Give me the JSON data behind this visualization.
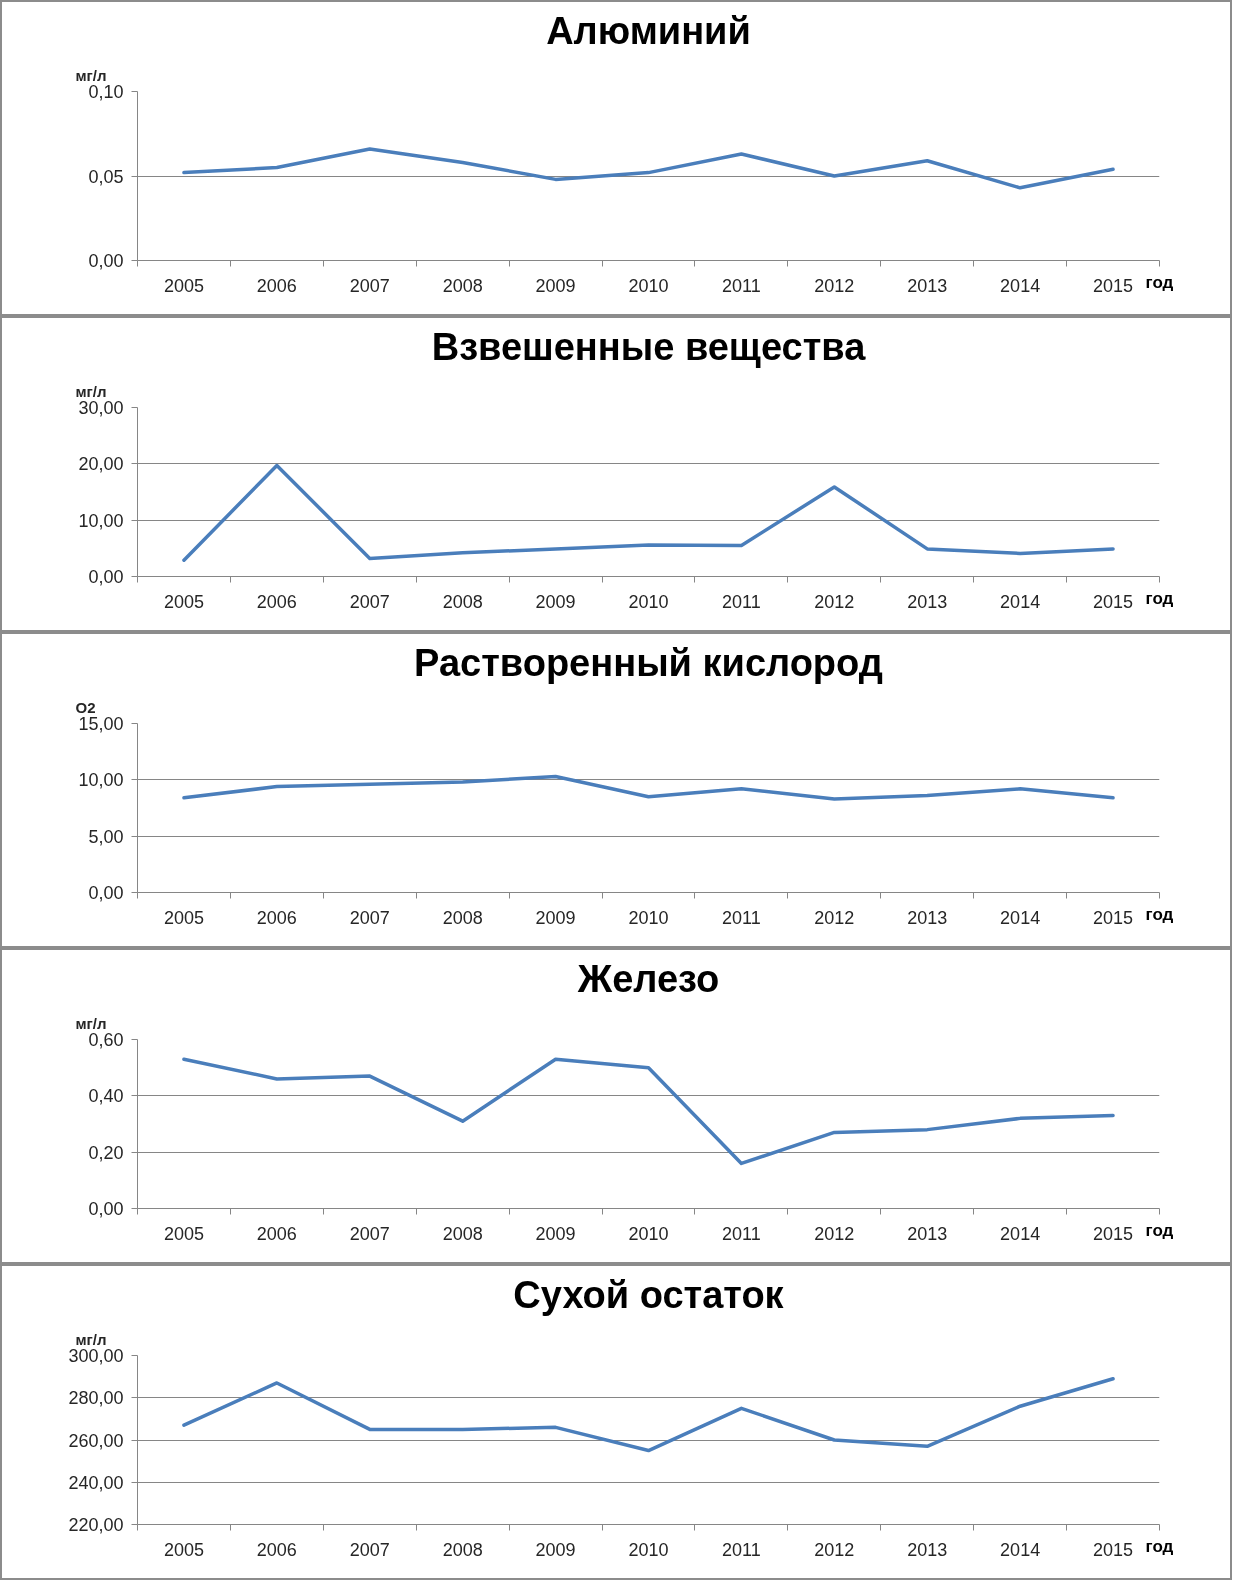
{
  "chart_data": [
    {
      "type": "line",
      "title": "Алюминий",
      "xlabel": "год",
      "ylabel": "мг/л",
      "categories": [
        "2005",
        "2006",
        "2007",
        "2008",
        "2009",
        "2010",
        "2011",
        "2012",
        "2013",
        "2014",
        "2015"
      ],
      "values": [
        0.052,
        0.055,
        0.066,
        0.058,
        0.048,
        0.052,
        0.063,
        0.05,
        0.059,
        0.043,
        0.054
      ],
      "color": "#4a7ebb",
      "ylim": [
        0,
        0.1
      ],
      "yticks": [
        {
          "value": 0,
          "label": "0,00"
        },
        {
          "value": 0.05,
          "label": "0,05"
        },
        {
          "value": 0.1,
          "label": "0,10"
        }
      ],
      "grid": "y",
      "line_style": "solid"
    },
    {
      "type": "line",
      "title": "Взвешенные вещества",
      "xlabel": "год",
      "ylabel": "мг/л",
      "categories": [
        "2005",
        "2006",
        "2007",
        "2008",
        "2009",
        "2010",
        "2011",
        "2012",
        "2013",
        "2014",
        "2015"
      ],
      "values": [
        2.9,
        19.7,
        3.2,
        4.2,
        4.9,
        5.6,
        5.5,
        15.9,
        4.9,
        4.1,
        4.9
      ],
      "color": "#4a7ebb",
      "ylim": [
        0,
        30
      ],
      "yticks": [
        {
          "value": 0,
          "label": "0,00"
        },
        {
          "value": 10,
          "label": "10,00"
        },
        {
          "value": 20,
          "label": "20,00"
        },
        {
          "value": 30,
          "label": "30,00"
        }
      ],
      "grid": "y",
      "line_style": "solid"
    },
    {
      "type": "line",
      "title": "Растворенный кислород",
      "xlabel": "год",
      "ylabel": "O2",
      "categories": [
        "2005",
        "2006",
        "2007",
        "2008",
        "2009",
        "2010",
        "2011",
        "2012",
        "2013",
        "2014",
        "2015"
      ],
      "values": [
        8.4,
        9.4,
        9.6,
        9.8,
        10.3,
        8.5,
        9.2,
        8.3,
        8.6,
        9.2,
        8.4
      ],
      "color": "#4a7ebb",
      "ylim": [
        0,
        15
      ],
      "yticks": [
        {
          "value": 0,
          "label": "0,00"
        },
        {
          "value": 5,
          "label": "5,00"
        },
        {
          "value": 10,
          "label": "10,00"
        },
        {
          "value": 15,
          "label": "15,00"
        }
      ],
      "grid": "y",
      "line_style": "solid"
    },
    {
      "type": "line",
      "title": "Железо",
      "xlabel": "год",
      "ylabel": "мг/л",
      "categories": [
        "2005",
        "2006",
        "2007",
        "2008",
        "2009",
        "2010",
        "2011",
        "2012",
        "2013",
        "2014",
        "2015"
      ],
      "values": [
        0.53,
        0.46,
        0.47,
        0.31,
        0.53,
        0.5,
        0.16,
        0.27,
        0.28,
        0.32,
        0.33
      ],
      "color": "#4a7ebb",
      "ylim": [
        0,
        0.6
      ],
      "yticks": [
        {
          "value": 0,
          "label": "0,00"
        },
        {
          "value": 0.2,
          "label": "0,20"
        },
        {
          "value": 0.4,
          "label": "0,40"
        },
        {
          "value": 0.6,
          "label": "0,60"
        }
      ],
      "grid": "y",
      "line_style": "solid"
    },
    {
      "type": "line",
      "title": "Сухой остаток",
      "xlabel": "год",
      "ylabel": "мг/л",
      "categories": [
        "2005",
        "2006",
        "2007",
        "2008",
        "2009",
        "2010",
        "2011",
        "2012",
        "2013",
        "2014",
        "2015"
      ],
      "values": [
        267,
        287,
        265,
        265,
        266,
        255,
        275,
        260,
        257,
        276,
        289
      ],
      "color": "#4a7ebb",
      "ylim": [
        220,
        300
      ],
      "yticks": [
        {
          "value": 220,
          "label": "220,00"
        },
        {
          "value": 240,
          "label": "240,00"
        },
        {
          "value": 260,
          "label": "260,00"
        },
        {
          "value": 280,
          "label": "280,00"
        },
        {
          "value": 300,
          "label": "300,00"
        }
      ],
      "grid": "y",
      "line_style": "solid"
    }
  ]
}
